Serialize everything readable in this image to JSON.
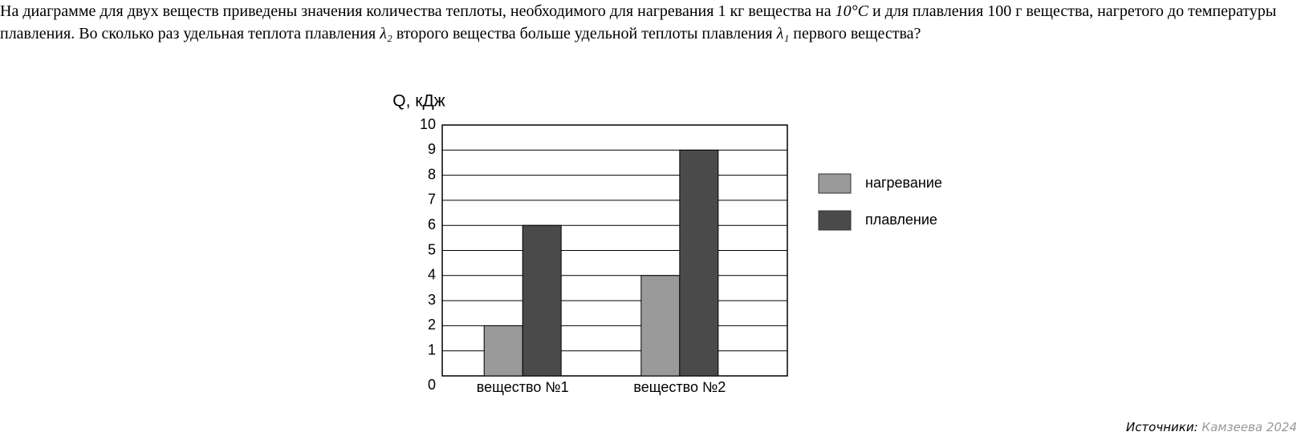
{
  "question_parts": [
    "На диаграмме для двух веществ приведены значения количества теплоты, необходимого для нагревания 1 кг вещества на ",
    "10°C",
    " и для плавления 100 г вещества, нагретого до температуры плавления. Во сколько раз удельная теплота плавления ",
    "λ₂",
    " второго вещества больше удельной теплоты плавления ",
    "λ₁",
    " первого вещества?"
  ],
  "chart_data": {
    "type": "bar",
    "y_label": "Q, кДж",
    "categories": [
      "вещество №1",
      "вещество №2"
    ],
    "series": [
      {
        "name": "нагревание",
        "color": "#9a9a9a",
        "values": [
          2,
          4
        ]
      },
      {
        "name": "плавление",
        "color": "#4a4a4a",
        "values": [
          6,
          9
        ]
      }
    ],
    "ylim": [
      0,
      10
    ],
    "yticks": [
      0,
      1,
      2,
      3,
      4,
      5,
      6,
      7,
      8,
      9,
      10
    ],
    "grid": true,
    "legend": "right"
  },
  "source": {
    "label": "Источники:",
    "text": "Камзеева 2024"
  }
}
